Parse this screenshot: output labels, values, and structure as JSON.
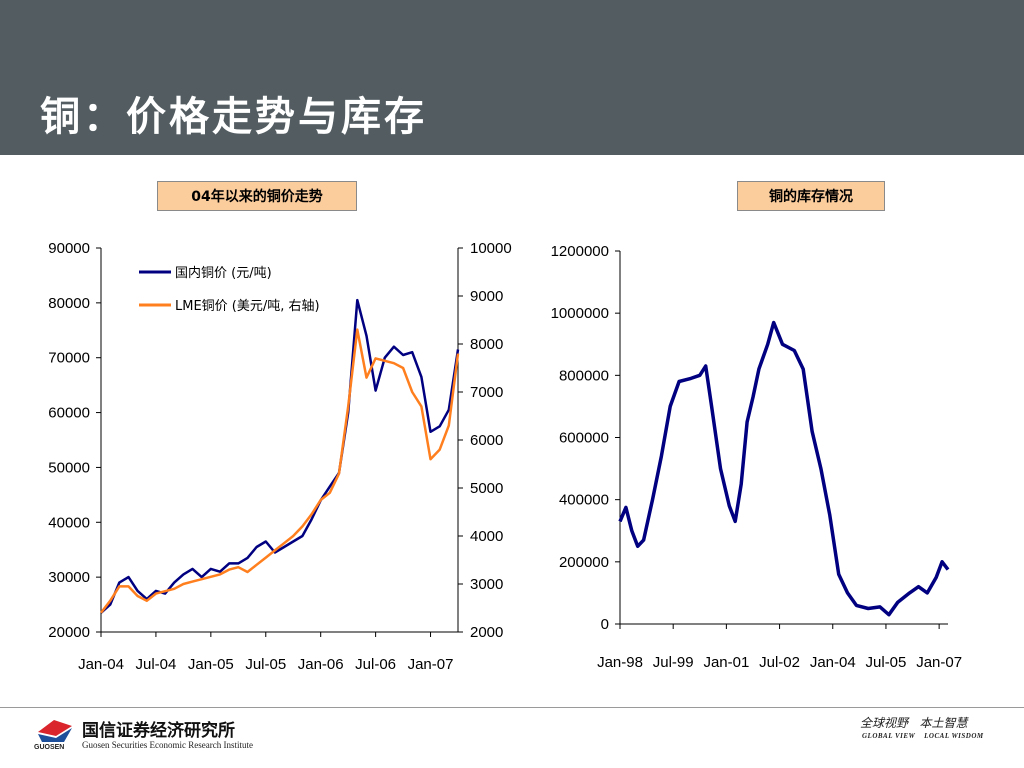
{
  "slide": {
    "title": "铜：价格走势与库存",
    "left_label": "04年以来的铜价走势",
    "right_label": "铜的库存情况"
  },
  "footer": {
    "company": "国信证券经济研究所",
    "company_en": "Guosen Securities Economic Research Institute",
    "logo_abbr": "GUOSEN",
    "slogan_cn": "全球视野   本土智慧",
    "slogan_en": "GLOBAL VIEW    LOCAL WISDOM"
  },
  "colors": {
    "header_bg": "#525c61",
    "label_bg": "#fbcc9c",
    "navy": "#000080",
    "orange": "#ff7f1e",
    "logo_red": "#d9252b",
    "logo_blue": "#1d4f9a"
  },
  "chart_data": [
    {
      "type": "line",
      "dual_axis": true,
      "x_tick_labels": [
        "Jan-04",
        "Jul-04",
        "Jan-05",
        "Jul-05",
        "Jan-06",
        "Jul-06",
        "Jan-07"
      ],
      "x_range": [
        "2004-01",
        "2007-04"
      ],
      "ylim_left": [
        20000,
        90000
      ],
      "y_ticks_left": [
        "20000",
        "30000",
        "40000",
        "50000",
        "60000",
        "70000",
        "80000",
        "90000"
      ],
      "ylim_right": [
        2000,
        10000
      ],
      "y_ticks_right": [
        "2000",
        "3000",
        "4000",
        "5000",
        "6000",
        "7000",
        "8000",
        "9000",
        "10000"
      ],
      "legend_position": "top-left",
      "series": [
        {
          "name": "国内铜价 (元/吨)",
          "axis": "left",
          "color": "#000080",
          "points": [
            [
              "2004-01",
              23500
            ],
            [
              "2004-02",
              25000
            ],
            [
              "2004-03",
              29000
            ],
            [
              "2004-04",
              30000
            ],
            [
              "2004-05",
              27500
            ],
            [
              "2004-06",
              26000
            ],
            [
              "2004-07",
              27500
            ],
            [
              "2004-08",
              27000
            ],
            [
              "2004-09",
              29000
            ],
            [
              "2004-10",
              30500
            ],
            [
              "2004-11",
              31500
            ],
            [
              "2004-12",
              30000
            ],
            [
              "2005-01",
              31500
            ],
            [
              "2005-02",
              31000
            ],
            [
              "2005-03",
              32500
            ],
            [
              "2005-04",
              32500
            ],
            [
              "2005-05",
              33500
            ],
            [
              "2005-06",
              35500
            ],
            [
              "2005-07",
              36500
            ],
            [
              "2005-08",
              34500
            ],
            [
              "2005-09",
              35500
            ],
            [
              "2005-10",
              36500
            ],
            [
              "2005-11",
              37500
            ],
            [
              "2005-12",
              40500
            ],
            [
              "2006-01",
              44000
            ],
            [
              "2006-02",
              46500
            ],
            [
              "2006-03",
              49000
            ],
            [
              "2006-04",
              60000
            ],
            [
              "2006-05",
              80500
            ],
            [
              "2006-06",
              74000
            ],
            [
              "2006-07",
              64000
            ],
            [
              "2006-08",
              70000
            ],
            [
              "2006-09",
              72000
            ],
            [
              "2006-10",
              70500
            ],
            [
              "2006-11",
              71000
            ],
            [
              "2006-12",
              66500
            ],
            [
              "2007-01",
              56500
            ],
            [
              "2007-02",
              57500
            ],
            [
              "2007-03",
              60500
            ],
            [
              "2007-04",
              71500
            ]
          ]
        },
        {
          "name": "LME铜价 (美元/吨, 右轴)",
          "axis": "right",
          "color": "#ff7f1e",
          "points": [
            [
              "2004-01",
              2400
            ],
            [
              "2004-02",
              2650
            ],
            [
              "2004-03",
              2950
            ],
            [
              "2004-04",
              2950
            ],
            [
              "2004-05",
              2750
            ],
            [
              "2004-06",
              2650
            ],
            [
              "2004-07",
              2800
            ],
            [
              "2004-08",
              2850
            ],
            [
              "2004-09",
              2900
            ],
            [
              "2004-10",
              3000
            ],
            [
              "2004-11",
              3050
            ],
            [
              "2004-12",
              3100
            ],
            [
              "2005-01",
              3150
            ],
            [
              "2005-02",
              3200
            ],
            [
              "2005-03",
              3300
            ],
            [
              "2005-04",
              3350
            ],
            [
              "2005-05",
              3250
            ],
            [
              "2005-06",
              3400
            ],
            [
              "2005-07",
              3550
            ],
            [
              "2005-08",
              3700
            ],
            [
              "2005-09",
              3850
            ],
            [
              "2005-10",
              4000
            ],
            [
              "2005-11",
              4200
            ],
            [
              "2005-12",
              4450
            ],
            [
              "2006-01",
              4750
            ],
            [
              "2006-02",
              4900
            ],
            [
              "2006-03",
              5300
            ],
            [
              "2006-04",
              6700
            ],
            [
              "2006-05",
              8300
            ],
            [
              "2006-06",
              7300
            ],
            [
              "2006-07",
              7700
            ],
            [
              "2006-08",
              7650
            ],
            [
              "2006-09",
              7600
            ],
            [
              "2006-10",
              7500
            ],
            [
              "2006-11",
              7000
            ],
            [
              "2006-12",
              6700
            ],
            [
              "2007-01",
              5600
            ],
            [
              "2007-02",
              5800
            ],
            [
              "2007-03",
              6300
            ],
            [
              "2007-04",
              7800
            ]
          ]
        }
      ]
    },
    {
      "type": "line",
      "x_tick_labels": [
        "Jan-98",
        "Jul-99",
        "Jan-01",
        "Jul-02",
        "Jan-04",
        "Jul-05",
        "Jan-07"
      ],
      "x_range": [
        "1998-01",
        "2007-04"
      ],
      "ylim": [
        0,
        1200000
      ],
      "y_ticks": [
        "0",
        "200000",
        "400000",
        "600000",
        "800000",
        "1000000",
        "1200000"
      ],
      "series": [
        {
          "color": "#000080",
          "points": [
            [
              "1998-01",
              330000
            ],
            [
              "1998-03",
              375000
            ],
            [
              "1998-05",
              300000
            ],
            [
              "1998-07",
              250000
            ],
            [
              "1998-09",
              270000
            ],
            [
              "1998-12",
              400000
            ],
            [
              "1999-03",
              540000
            ],
            [
              "1999-06",
              700000
            ],
            [
              "1999-09",
              780000
            ],
            [
              "2000-01",
              790000
            ],
            [
              "2000-04",
              800000
            ],
            [
              "2000-06",
              830000
            ],
            [
              "2000-08",
              700000
            ],
            [
              "2000-11",
              500000
            ],
            [
              "2001-02",
              380000
            ],
            [
              "2001-04",
              330000
            ],
            [
              "2001-06",
              450000
            ],
            [
              "2001-08",
              650000
            ],
            [
              "2001-10",
              730000
            ],
            [
              "2001-12",
              820000
            ],
            [
              "2002-03",
              900000
            ],
            [
              "2002-05",
              970000
            ],
            [
              "2002-08",
              900000
            ],
            [
              "2002-12",
              880000
            ],
            [
              "2003-03",
              820000
            ],
            [
              "2003-06",
              620000
            ],
            [
              "2003-09",
              500000
            ],
            [
              "2003-12",
              350000
            ],
            [
              "2004-03",
              160000
            ],
            [
              "2004-06",
              100000
            ],
            [
              "2004-09",
              60000
            ],
            [
              "2005-01",
              50000
            ],
            [
              "2005-05",
              55000
            ],
            [
              "2005-08",
              30000
            ],
            [
              "2005-11",
              70000
            ],
            [
              "2006-03",
              100000
            ],
            [
              "2006-06",
              120000
            ],
            [
              "2006-09",
              100000
            ],
            [
              "2006-12",
              150000
            ],
            [
              "2007-02",
              200000
            ],
            [
              "2007-04",
              175000
            ]
          ]
        }
      ]
    }
  ]
}
